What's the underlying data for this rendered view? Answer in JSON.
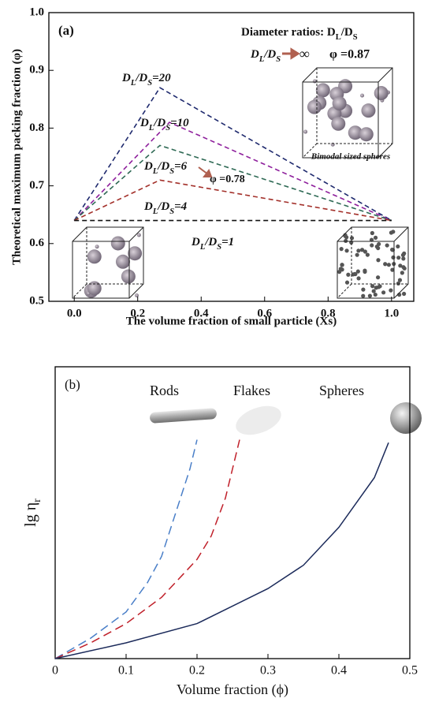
{
  "chart_data": [
    {
      "type": "line",
      "panel_label": "(a)",
      "xlabel": "The volume fraction of small particle (Xs)",
      "ylabel": "Theoretical maximum packing fraction (φ)",
      "xlim": [
        -0.08,
        1.07
      ],
      "ylim": [
        0.5,
        1.0
      ],
      "xticks": [
        {
          "value": 0,
          "label": "0.0"
        },
        0.2,
        0.4,
        0.6,
        0.8,
        {
          "value": 1,
          "label": "1.0"
        }
      ],
      "yticks": [
        0.5,
        0.6,
        0.7,
        0.8,
        0.9,
        {
          "value": 1,
          "label": "1.0"
        }
      ],
      "annotations": {
        "diameter_title": "Diameter ratios: DL/DS",
        "limit_ratio": "DL/DS",
        "limit_symbol": "∞",
        "limit_value": "φ =0.87",
        "value_6": "φ =0.78",
        "cube_caption": "Bimodal sized spheres"
      },
      "series": [
        {
          "name": "DL/DS=20",
          "color": "#1f2a6e",
          "line_style": "dashed",
          "x": [
            0,
            0.27,
            1
          ],
          "values": [
            0.64,
            0.87,
            0.64
          ]
        },
        {
          "name": "DL/DS=10",
          "color": "#8e1f9c",
          "line_style": "dashed",
          "x": [
            0,
            0.3,
            1
          ],
          "values": [
            0.64,
            0.81,
            0.64
          ]
        },
        {
          "name": "DL/DS=6",
          "color": "#2f6a55",
          "line_style": "dashed",
          "x": [
            0,
            0.27,
            1
          ],
          "values": [
            0.64,
            0.77,
            0.64
          ]
        },
        {
          "name": "DL/DS=4",
          "color": "#a3302a",
          "line_style": "dashed",
          "x": [
            0,
            0.27,
            1
          ],
          "values": [
            0.64,
            0.71,
            0.64
          ]
        },
        {
          "name": "DL/DS=1",
          "color": "#111111",
          "line_style": "dashed",
          "x": [
            0,
            1
          ],
          "values": [
            0.64,
            0.64
          ]
        }
      ]
    },
    {
      "type": "line",
      "panel_label": "(b)",
      "xlabel": "Volume fraction (ϕ)",
      "ylabel": "lg ηr",
      "xlim": [
        0,
        0.5
      ],
      "ylim": [
        0,
        1
      ],
      "xticks": [
        0,
        0.1,
        0.2,
        0.3,
        0.4,
        0.5
      ],
      "series": [
        {
          "name": "Rods",
          "color": "#4a7fc8",
          "line_style": "dashed",
          "x": [
            0,
            0.05,
            0.1,
            0.13,
            0.15,
            0.17,
            0.19,
            0.2
          ],
          "values": [
            0,
            0.07,
            0.16,
            0.26,
            0.35,
            0.5,
            0.65,
            0.75
          ]
        },
        {
          "name": "Flakes",
          "color": "#c0202a",
          "line_style": "dashed",
          "x": [
            0,
            0.05,
            0.1,
            0.15,
            0.2,
            0.22,
            0.24,
            0.26
          ],
          "values": [
            0,
            0.054,
            0.12,
            0.21,
            0.34,
            0.42,
            0.55,
            0.75
          ]
        },
        {
          "name": "Spheres",
          "color": "#1b2a5a",
          "line_style": "solid",
          "x": [
            0,
            0.1,
            0.2,
            0.3,
            0.35,
            0.4,
            0.45,
            0.47
          ],
          "values": [
            0,
            0.054,
            0.12,
            0.24,
            0.32,
            0.45,
            0.62,
            0.74
          ]
        }
      ]
    }
  ]
}
